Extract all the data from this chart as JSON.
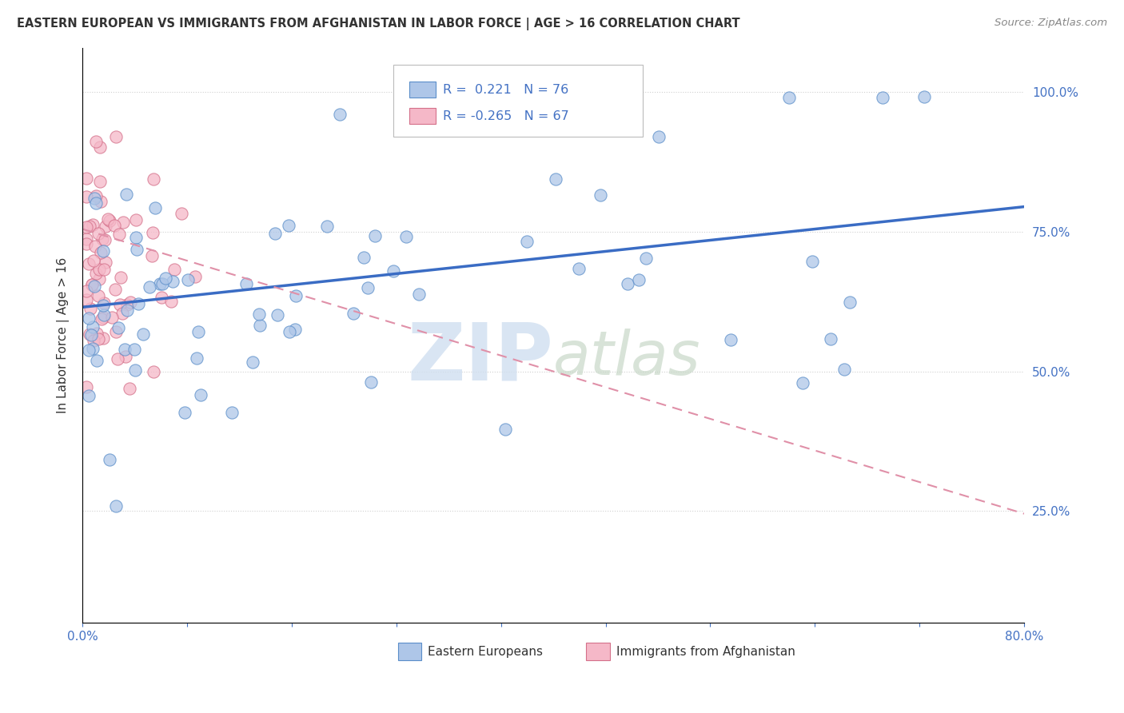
{
  "title": "EASTERN EUROPEAN VS IMMIGRANTS FROM AFGHANISTAN IN LABOR FORCE | AGE > 16 CORRELATION CHART",
  "source": "Source: ZipAtlas.com",
  "ylabel": "In Labor Force | Age > 16",
  "y_ticks": [
    "100.0%",
    "75.0%",
    "50.0%",
    "25.0%"
  ],
  "y_tick_vals": [
    1.0,
    0.75,
    0.5,
    0.25
  ],
  "xlim": [
    0.0,
    0.8
  ],
  "ylim": [
    0.05,
    1.08
  ],
  "blue_R": 0.221,
  "blue_N": 76,
  "pink_R": -0.265,
  "pink_N": 67,
  "blue_color": "#aec6e8",
  "blue_edge_color": "#5b8ec9",
  "pink_color": "#f5b8c8",
  "pink_edge_color": "#d4708a",
  "blue_line_color": "#3a6cc4",
  "pink_line_color": "#e090a8",
  "blue_label": "Eastern Europeans",
  "pink_label": "Immigrants from Afghanistan",
  "blue_line_y0": 0.615,
  "blue_line_y1": 0.795,
  "pink_line_y0": 0.755,
  "pink_line_y1": 0.245,
  "title_fontsize": 10.5,
  "axis_label_color": "#4472c4",
  "text_color": "#333333",
  "grid_color": "#d0d0d0",
  "watermark_text": "ZIPatlas",
  "watermark_zip": "ZIP",
  "watermark_atlas": "atlas"
}
